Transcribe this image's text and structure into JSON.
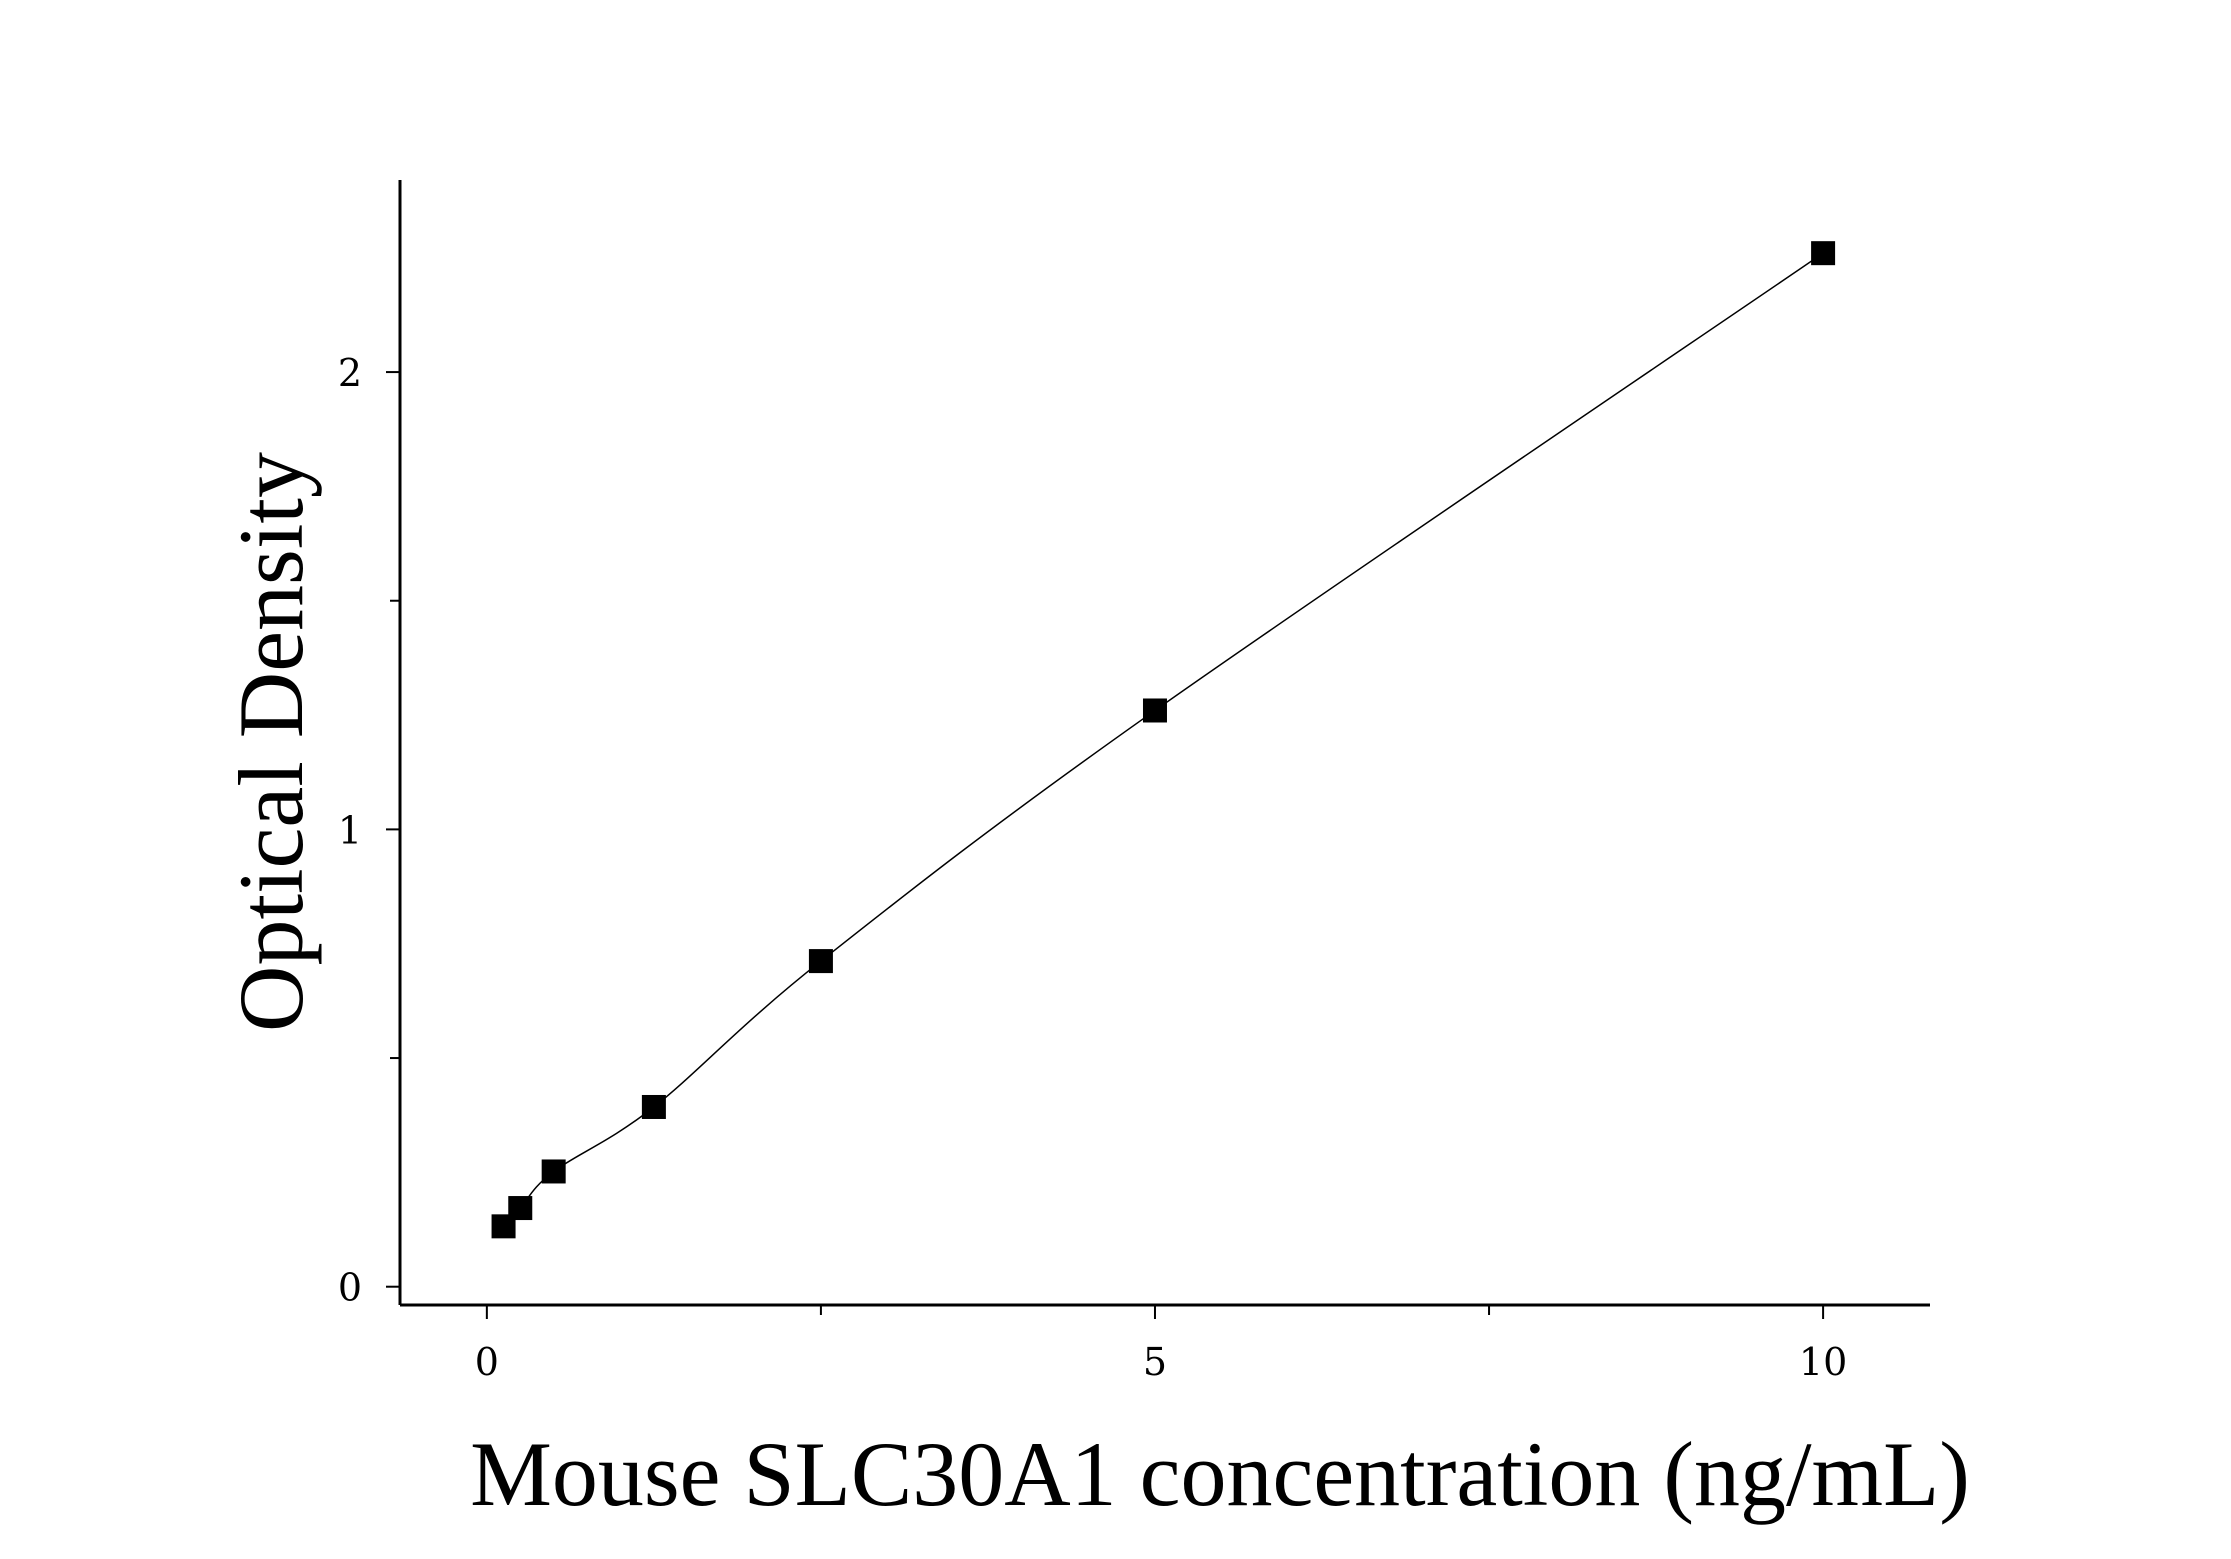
{
  "chart_data": {
    "type": "scatter",
    "xlabel": "Mouse SLC30A1 concentration (ng/mL)",
    "ylabel": "Optical Density",
    "xlim": [
      -0.65,
      10.8
    ],
    "ylim": [
      -0.04,
      2.42
    ],
    "x_ticks": [
      0,
      5,
      10
    ],
    "x_minor_ticks": [
      2.5,
      7.5
    ],
    "y_ticks": [
      0,
      1,
      2
    ],
    "y_minor_ticks": [
      0.5,
      1.5
    ],
    "grid": false,
    "legend": "none",
    "marker": "square",
    "color": "#000000",
    "series": [
      {
        "x": [
          0.125,
          0.25,
          0.5,
          1.25,
          2.5,
          5,
          10
        ],
        "y": [
          0.132,
          0.172,
          0.252,
          0.393,
          0.712,
          1.26,
          2.26
        ]
      }
    ]
  }
}
